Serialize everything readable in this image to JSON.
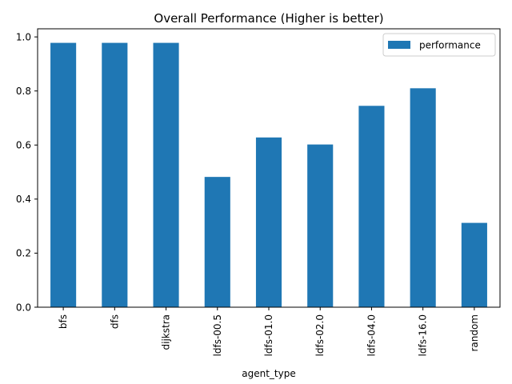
{
  "chart_data": {
    "type": "bar",
    "title": "Overall Performance (Higher is better)",
    "xlabel": "agent_type",
    "ylabel": "",
    "categories": [
      "bfs",
      "dfs",
      "dijkstra",
      "ldfs-00.5",
      "ldfs-01.0",
      "ldfs-02.0",
      "ldfs-04.0",
      "ldfs-16.0",
      "random"
    ],
    "series": [
      {
        "name": "performance",
        "values": [
          0.978,
          0.978,
          0.978,
          0.482,
          0.628,
          0.602,
          0.745,
          0.81,
          0.312
        ],
        "color": "#1f77b4"
      }
    ],
    "ylim": [
      0,
      1.03
    ],
    "yticks": [
      "0.0",
      "0.2",
      "0.4",
      "0.6",
      "0.8",
      "1.0"
    ],
    "grid": false,
    "legend_position": "top-right"
  }
}
